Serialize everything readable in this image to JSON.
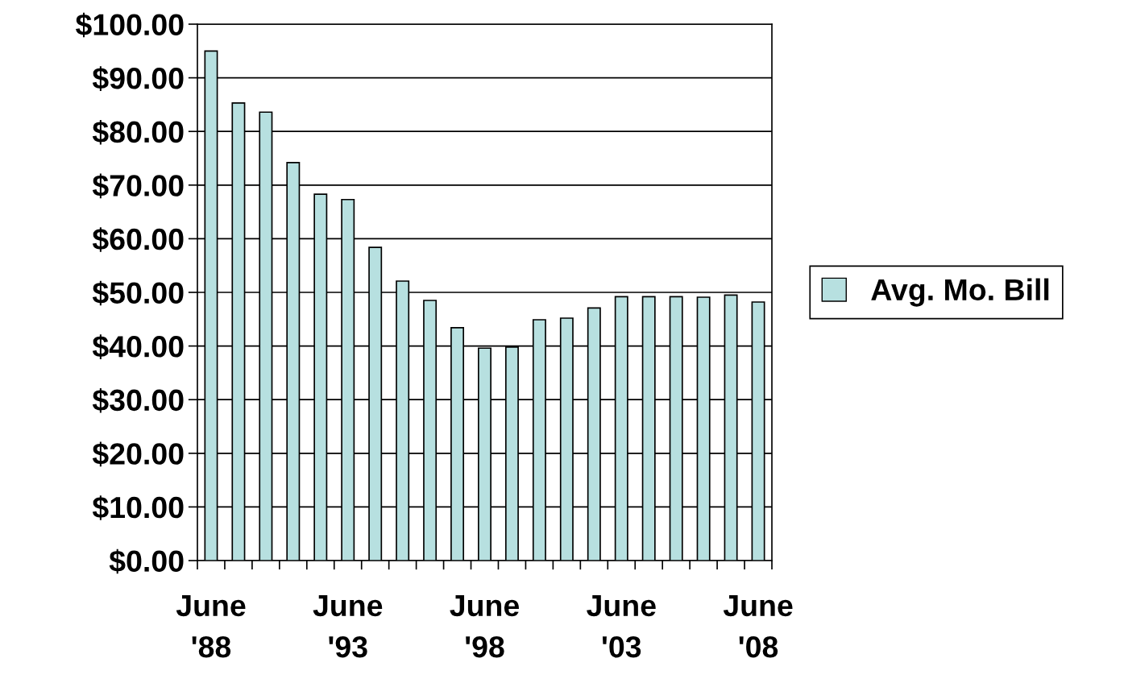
{
  "chart_data": {
    "type": "bar",
    "categories": [
      "June\n'88",
      null,
      null,
      null,
      null,
      "June\n'93",
      null,
      null,
      null,
      null,
      "June\n'98",
      null,
      null,
      null,
      null,
      "June\n'03",
      null,
      null,
      null,
      null,
      "June\n'08"
    ],
    "series": [
      {
        "name": "Avg. Mo. Bill",
        "color": "#b7e0e0",
        "values": [
          95,
          85.3,
          83.6,
          74.2,
          68.3,
          67.3,
          58.4,
          52.1,
          48.5,
          43.4,
          39.6,
          39.8,
          44.9,
          45.2,
          47.1,
          49.2,
          49.2,
          49.2,
          49.1,
          49.5,
          48.2
        ]
      }
    ],
    "ylim": [
      0,
      100
    ],
    "yticks": [
      {
        "value": 0,
        "label": "$0.00"
      },
      {
        "value": 10,
        "label": "$10.00"
      },
      {
        "value": 20,
        "label": "$20.00"
      },
      {
        "value": 30,
        "label": "$30.00"
      },
      {
        "value": 40,
        "label": "$40.00"
      },
      {
        "value": 50,
        "label": "$50.00"
      },
      {
        "value": 60,
        "label": "$60.00"
      },
      {
        "value": 70,
        "label": "$70.00"
      },
      {
        "value": 80,
        "label": "$80.00"
      },
      {
        "value": 90,
        "label": "$90.00"
      },
      {
        "value": 100,
        "label": "$100.00"
      }
    ],
    "grid": "y",
    "legend": "right"
  }
}
